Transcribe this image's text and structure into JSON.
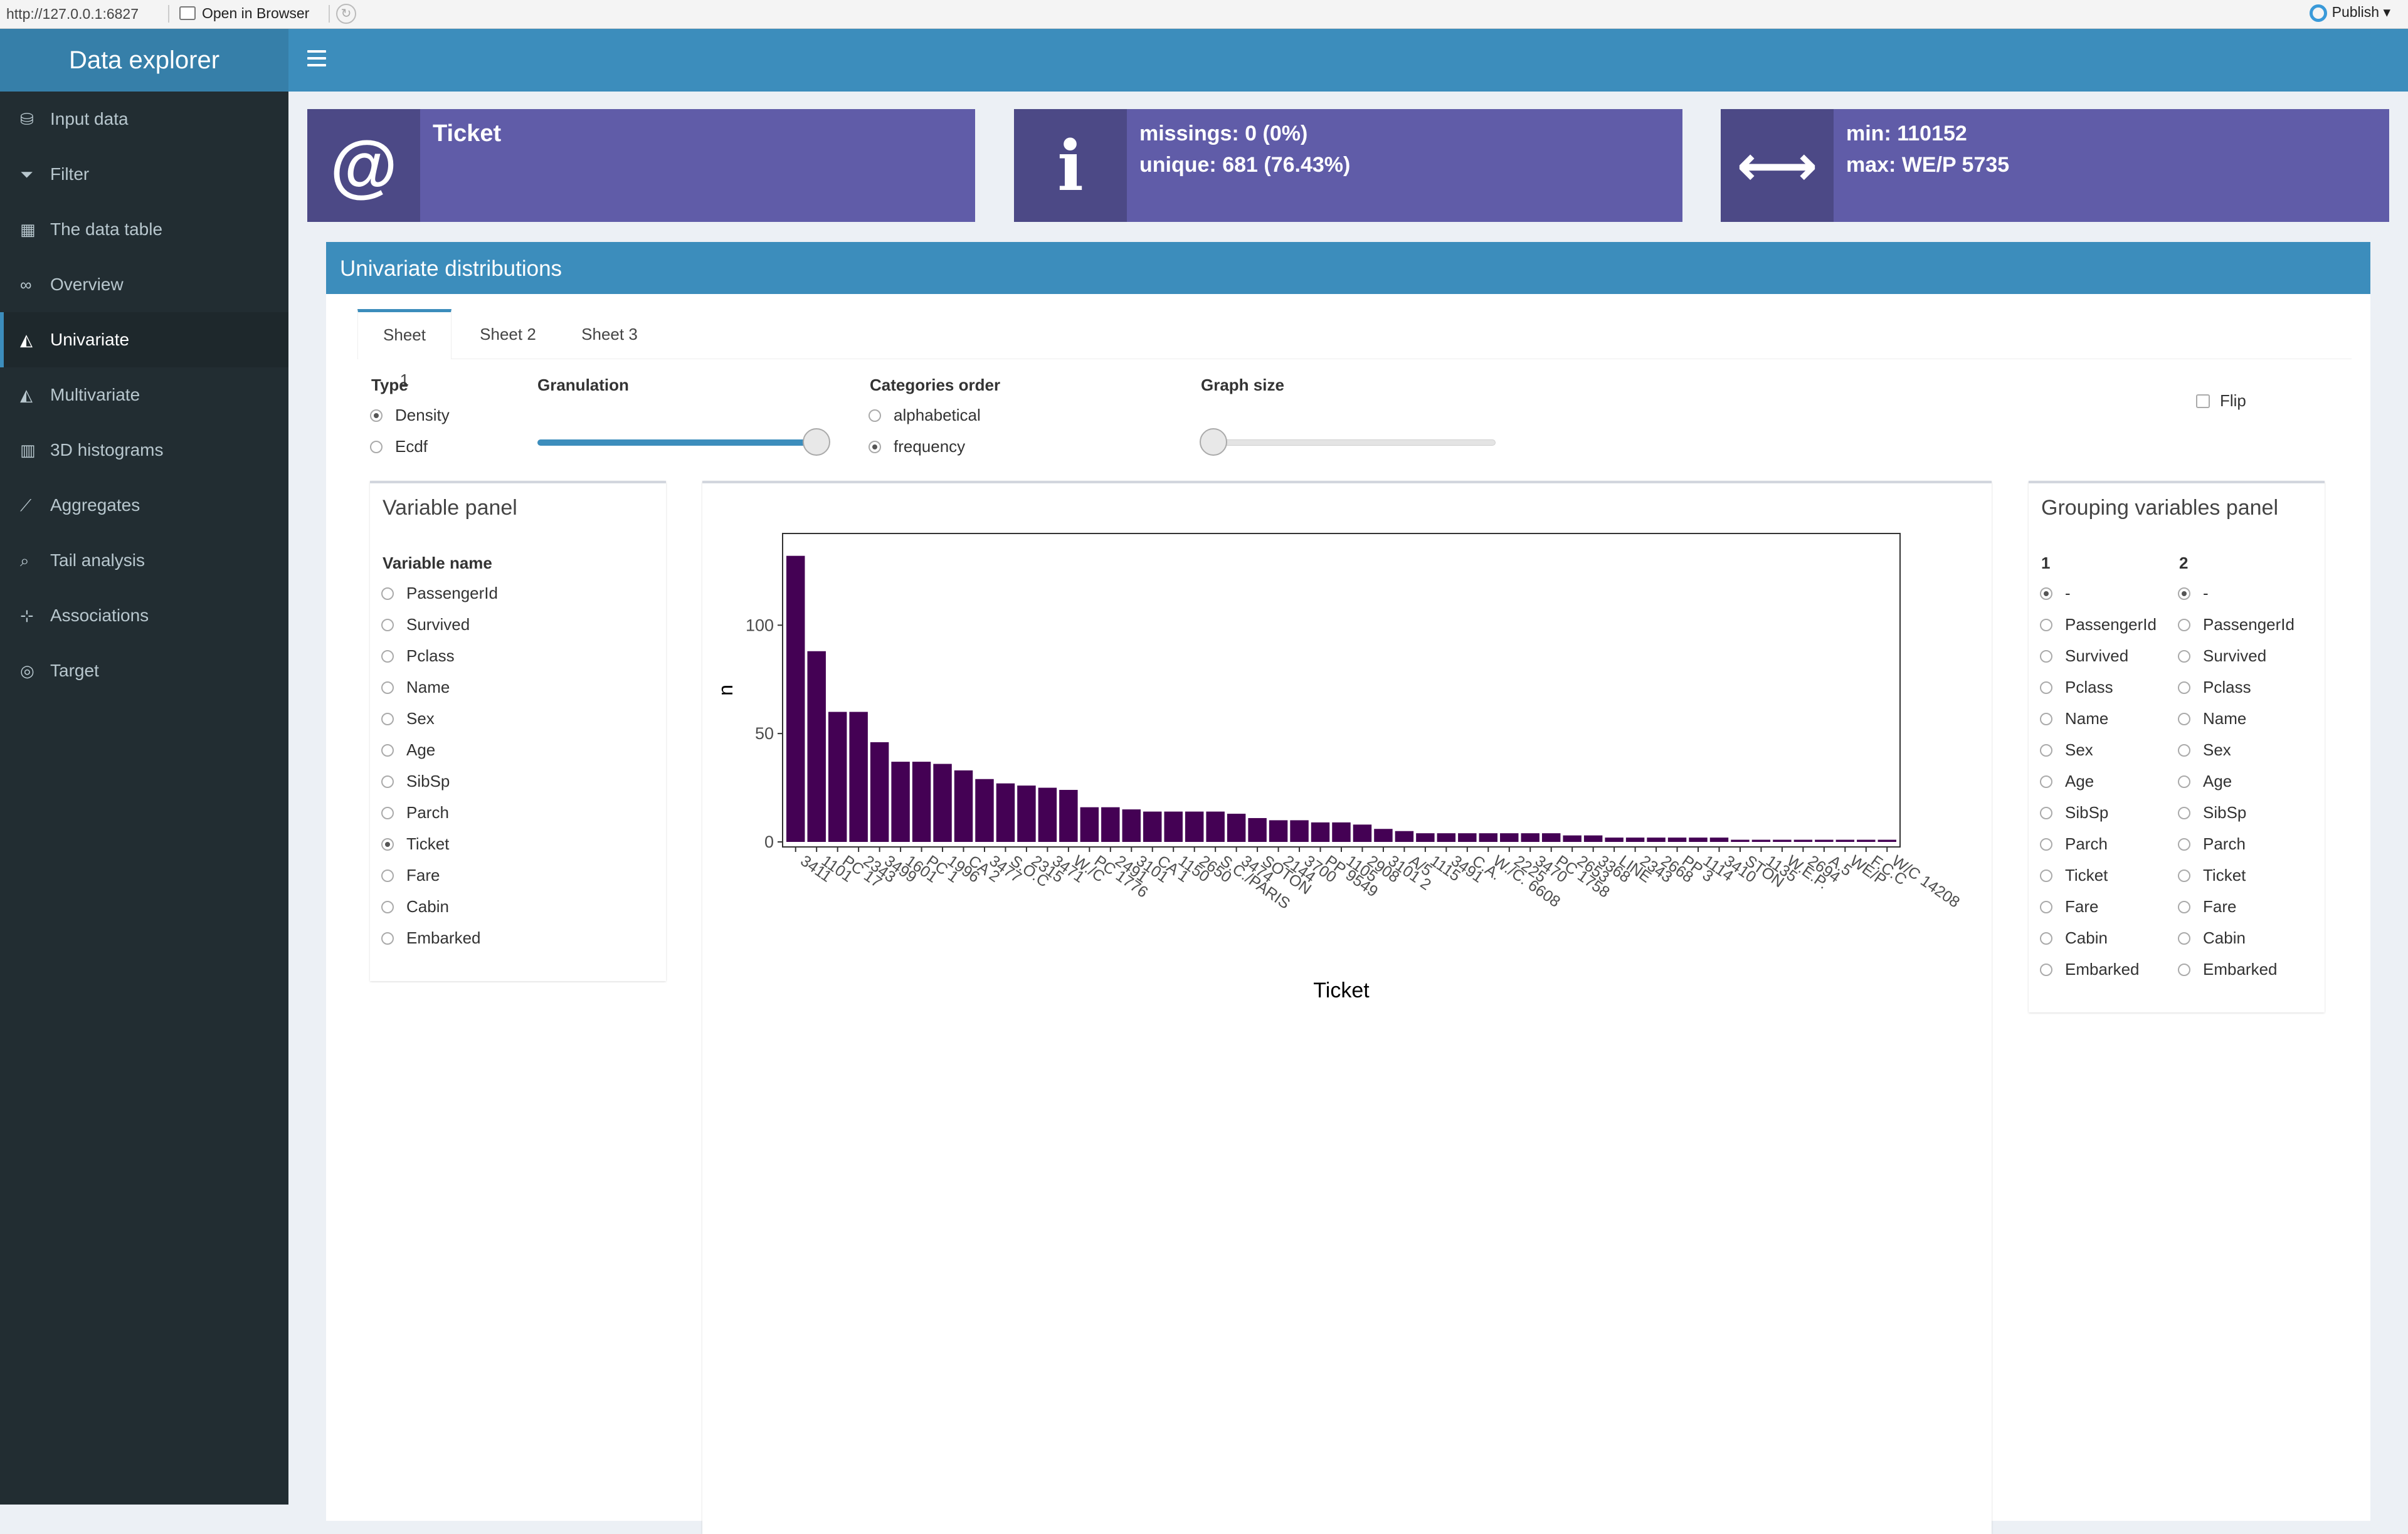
{
  "browser": {
    "url": "http://127.0.0.1:6827",
    "open_in_browser": "Open in Browser",
    "publish": "Publish"
  },
  "app": {
    "title": "Data explorer"
  },
  "sidebar": {
    "items": [
      {
        "label": "Input data",
        "icon": "database-icon"
      },
      {
        "label": "Filter",
        "icon": "filter-icon"
      },
      {
        "label": "The data table",
        "icon": "table-icon"
      },
      {
        "label": "Overview",
        "icon": "binoculars-icon"
      },
      {
        "label": "Univariate",
        "icon": "area-chart-icon"
      },
      {
        "label": "Multivariate",
        "icon": "area-chart-icon"
      },
      {
        "label": "3D histograms",
        "icon": "bar-chart-icon"
      },
      {
        "label": "Aggregates",
        "icon": "line-chart-icon"
      },
      {
        "label": "Tail analysis",
        "icon": "search-icon"
      },
      {
        "label": "Associations",
        "icon": "sitemap-icon"
      },
      {
        "label": "Target",
        "icon": "bullseye-icon"
      }
    ],
    "active": "Univariate"
  },
  "info_boxes": [
    {
      "icon": "at-icon",
      "line1": "Ticket",
      "line2": ""
    },
    {
      "icon": "info-icon",
      "line1": "missings: 0 (0%)",
      "line2": "unique: 681 (76.43%)"
    },
    {
      "icon": "arrows-h-icon",
      "line1": "min: 110152",
      "line2": "max: WE/P 5735"
    }
  ],
  "univariate": {
    "title": "Univariate distributions",
    "tabs": [
      "Sheet 1",
      "Sheet 2",
      "Sheet 3"
    ],
    "active_tab": "Sheet 1",
    "type": {
      "label": "Type",
      "options": [
        "Density",
        "Ecdf"
      ],
      "selected": "Density"
    },
    "granulation": {
      "label": "Granulation",
      "value": 1.0
    },
    "categories_order": {
      "label": "Categories order",
      "options": [
        "alphabetical",
        "frequency"
      ],
      "selected": "frequency"
    },
    "graph_size": {
      "label": "Graph size",
      "value": 0.0
    },
    "flip": {
      "label": "Flip",
      "checked": false
    }
  },
  "variable_panel": {
    "title": "Variable panel",
    "header": "Variable name",
    "options": [
      "PassengerId",
      "Survived",
      "Pclass",
      "Name",
      "Sex",
      "Age",
      "SibSp",
      "Parch",
      "Ticket",
      "Fare",
      "Cabin",
      "Embarked"
    ],
    "selected": "Ticket"
  },
  "grouping_panel": {
    "title": "Grouping variables panel",
    "col1_header": "1",
    "col2_header": "2",
    "options": [
      "-",
      "PassengerId",
      "Survived",
      "Pclass",
      "Name",
      "Sex",
      "Age",
      "SibSp",
      "Parch",
      "Ticket",
      "Fare",
      "Cabin",
      "Embarked"
    ],
    "selected1": "-",
    "selected2": "-"
  },
  "colors": {
    "bar": "#440154",
    "primary": "#3c8dbc",
    "info_box": "#605ca8",
    "sidebar": "#222d32"
  },
  "chart_data": {
    "type": "bar",
    "xlabel": "Ticket",
    "ylabel": "n",
    "ylim": [
      0,
      140
    ],
    "yticks": [
      0,
      50,
      100
    ],
    "grid": false,
    "values": [
      132,
      88,
      60,
      60,
      46,
      37,
      37,
      36,
      33,
      29,
      27,
      26,
      25,
      24,
      16,
      16,
      15,
      14,
      14,
      14,
      14,
      13,
      11,
      10,
      10,
      9,
      9,
      8,
      6,
      5,
      4,
      4,
      4,
      4,
      4,
      4,
      4,
      3,
      3,
      2,
      2,
      2,
      2,
      2,
      2,
      1,
      1,
      1,
      1,
      1,
      1,
      1,
      1
    ],
    "tick_labels": [
      "3411",
      "1101",
      "PC 17",
      "2343",
      "3499",
      "1601",
      "PC 1",
      "1996",
      "CA 2",
      "3477",
      "S.O.C",
      "2315",
      "3471",
      "W./C",
      "PC 1776",
      "2491",
      "3101",
      "CA 1",
      "1150",
      "2650",
      "S.C./PARIS",
      "3474",
      "SOTON",
      "2144",
      "3700",
      "PP 9549",
      "1105",
      "2908",
      "3101 2",
      "A/5",
      "1115",
      "3491",
      "C.A.",
      "W./C. 6608",
      "2225",
      "3470",
      "PC 1758",
      "2653",
      "3368",
      "LINE",
      "2343",
      "2668",
      "PP 3",
      "1114",
      "3410",
      "STON",
      "1135",
      "W.E.P.",
      "2694",
      "A.5",
      "WE/P",
      "F.C.C",
      "W/C 14208"
    ]
  }
}
